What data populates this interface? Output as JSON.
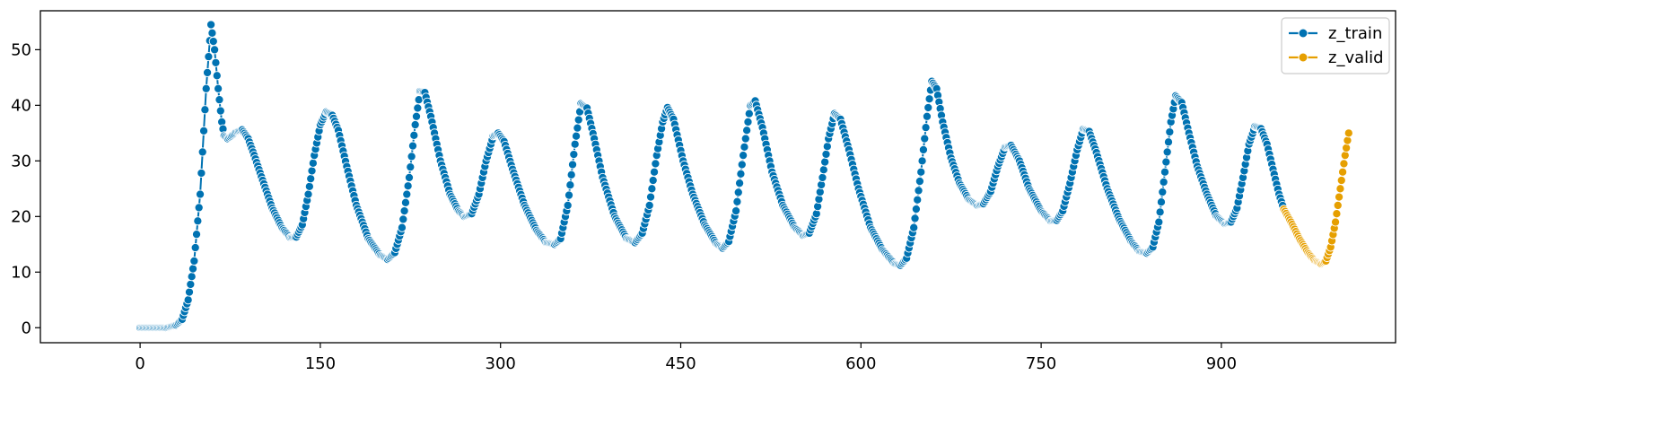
{
  "chart_data": {
    "type": "line",
    "title": "",
    "xlabel": "",
    "ylabel": "",
    "xlim": [
      -83,
      1045
    ],
    "ylim": [
      -2.7,
      57
    ],
    "xticks": [
      0,
      150,
      300,
      450,
      600,
      750,
      900
    ],
    "yticks": [
      0,
      10,
      20,
      30,
      40,
      50
    ],
    "xtick_labels": [
      "0",
      "150",
      "300",
      "450",
      "600",
      "750",
      "900"
    ],
    "ytick_labels": [
      "0",
      "10",
      "20",
      "30",
      "40",
      "50"
    ],
    "grid": false,
    "legend_position": "top-right",
    "marker": "circle",
    "series": [
      {
        "name": "z_train",
        "color": "#0072b2",
        "keypoints": [
          [
            0,
            0
          ],
          [
            22,
            0
          ],
          [
            30,
            0.5
          ],
          [
            35,
            1.5
          ],
          [
            40,
            5
          ],
          [
            45,
            12
          ],
          [
            50,
            24
          ],
          [
            55,
            43
          ],
          [
            59,
            54.5
          ],
          [
            62,
            50
          ],
          [
            65,
            43
          ],
          [
            68,
            37
          ],
          [
            70,
            34.5
          ],
          [
            73,
            34
          ],
          [
            76,
            34.5
          ],
          [
            80,
            35.2
          ],
          [
            85,
            35.6
          ],
          [
            90,
            34
          ],
          [
            95,
            31
          ],
          [
            102,
            26.5
          ],
          [
            110,
            21.5
          ],
          [
            118,
            18
          ],
          [
            125,
            16.2
          ],
          [
            130,
            16.3
          ],
          [
            135,
            18.5
          ],
          [
            140,
            24
          ],
          [
            145,
            31
          ],
          [
            150,
            36.5
          ],
          [
            155,
            38.8
          ],
          [
            160,
            38.2
          ],
          [
            165,
            35.5
          ],
          [
            172,
            29
          ],
          [
            180,
            22
          ],
          [
            190,
            16
          ],
          [
            200,
            13
          ],
          [
            206,
            12.3
          ],
          [
            212,
            13.5
          ],
          [
            218,
            18
          ],
          [
            224,
            27
          ],
          [
            229,
            36.5
          ],
          [
            233,
            42.5
          ],
          [
            237,
            42.3
          ],
          [
            242,
            38
          ],
          [
            250,
            30
          ],
          [
            258,
            24
          ],
          [
            265,
            21
          ],
          [
            270,
            20
          ],
          [
            276,
            20.5
          ],
          [
            282,
            24
          ],
          [
            288,
            30
          ],
          [
            294,
            34.5
          ],
          [
            298,
            35
          ],
          [
            303,
            33.5
          ],
          [
            310,
            28.5
          ],
          [
            320,
            22
          ],
          [
            330,
            17.5
          ],
          [
            338,
            15.3
          ],
          [
            345,
            15
          ],
          [
            350,
            16
          ],
          [
            356,
            22
          ],
          [
            362,
            33
          ],
          [
            367,
            40.3
          ],
          [
            372,
            39.5
          ],
          [
            378,
            34
          ],
          [
            385,
            27
          ],
          [
            395,
            20
          ],
          [
            405,
            16
          ],
          [
            412,
            15.3
          ],
          [
            418,
            17
          ],
          [
            424,
            22
          ],
          [
            430,
            31
          ],
          [
            435,
            37
          ],
          [
            439,
            39.6
          ],
          [
            444,
            37.5
          ],
          [
            452,
            30
          ],
          [
            460,
            24
          ],
          [
            470,
            18.5
          ],
          [
            480,
            15
          ],
          [
            485,
            14.3
          ],
          [
            490,
            15.5
          ],
          [
            496,
            21
          ],
          [
            502,
            31
          ],
          [
            508,
            40
          ],
          [
            512,
            40.8
          ],
          [
            518,
            36
          ],
          [
            526,
            28
          ],
          [
            535,
            22
          ],
          [
            545,
            18
          ],
          [
            552,
            16.6
          ],
          [
            557,
            17
          ],
          [
            563,
            20.5
          ],
          [
            568,
            27
          ],
          [
            573,
            34
          ],
          [
            578,
            38.5
          ],
          [
            583,
            37.5
          ],
          [
            590,
            32
          ],
          [
            598,
            25
          ],
          [
            608,
            18
          ],
          [
            618,
            14
          ],
          [
            628,
            11.5
          ],
          [
            633,
            11.2
          ],
          [
            638,
            12.5
          ],
          [
            644,
            18
          ],
          [
            650,
            28
          ],
          [
            655,
            38
          ],
          [
            659,
            44.3
          ],
          [
            663,
            43
          ],
          [
            668,
            37
          ],
          [
            675,
            30.5
          ],
          [
            682,
            26
          ],
          [
            690,
            23
          ],
          [
            697,
            22
          ],
          [
            702,
            22.3
          ],
          [
            708,
            24.5
          ],
          [
            714,
            29
          ],
          [
            720,
            32.5
          ],
          [
            725,
            32.8
          ],
          [
            732,
            30
          ],
          [
            740,
            25
          ],
          [
            750,
            21
          ],
          [
            758,
            19.2
          ],
          [
            763,
            19.3
          ],
          [
            768,
            21
          ],
          [
            774,
            26
          ],
          [
            780,
            32
          ],
          [
            785,
            35.7
          ],
          [
            790,
            35.3
          ],
          [
            796,
            31.5
          ],
          [
            805,
            25
          ],
          [
            815,
            19.5
          ],
          [
            825,
            15.5
          ],
          [
            832,
            13.7
          ],
          [
            838,
            13.4
          ],
          [
            843,
            14.5
          ],
          [
            848,
            19
          ],
          [
            853,
            28
          ],
          [
            858,
            37
          ],
          [
            862,
            41.7
          ],
          [
            867,
            40.5
          ],
          [
            873,
            35
          ],
          [
            880,
            29
          ],
          [
            888,
            24
          ],
          [
            896,
            20
          ],
          [
            903,
            18.7
          ],
          [
            908,
            19
          ],
          [
            913,
            21.5
          ],
          [
            918,
            27
          ],
          [
            923,
            33
          ],
          [
            928,
            36.2
          ],
          [
            933,
            35.8
          ],
          [
            938,
            33
          ],
          [
            943,
            28.5
          ],
          [
            948,
            24
          ],
          [
            952,
            21.3
          ]
        ]
      },
      {
        "name": "z_valid",
        "color": "#e69f00",
        "keypoints": [
          [
            952,
            21.3
          ],
          [
            958,
            19
          ],
          [
            965,
            16
          ],
          [
            972,
            13.5
          ],
          [
            978,
            12
          ],
          [
            983,
            11.5
          ],
          [
            987,
            12
          ],
          [
            991,
            14.5
          ],
          [
            995,
            19
          ],
          [
            999,
            25
          ],
          [
            1003,
            31
          ],
          [
            1006,
            35
          ]
        ]
      }
    ]
  }
}
